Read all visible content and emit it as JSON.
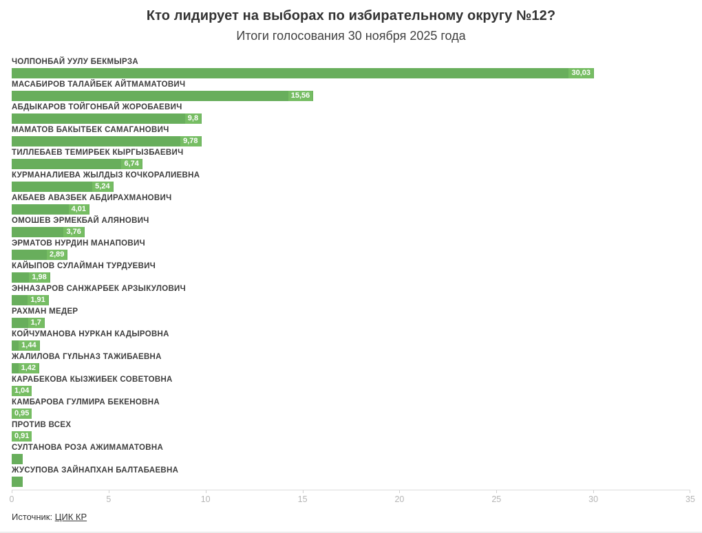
{
  "chart_data": {
    "type": "bar",
    "orientation": "horizontal",
    "title": "Кто лидирует на выборах по избирательному округу №12?",
    "subtitle": "Итоги голосования 30 ноября 2025 года",
    "categories": [
      "ЧОЛПОНБАЙ УУЛУ БЕКМЫРЗА",
      "МАСАБИРОВ ТАЛАЙБЕК АЙТМАМАТОВИЧ",
      "АБДЫКАРОВ ТОЙГОНБАЙ ЖОРОБАЕВИЧ",
      "МАМАТОВ БАКЫТБЕК САМАГАНОВИЧ",
      "ТИЛЛЕБАЕВ ТЕМИРБЕК КЫРГЫЗБАЕВИЧ",
      "КУРМАНАЛИЕВА ЖЫЛДЫЗ КОЧКОРАЛИЕВНА",
      "АКБАЕВ АВАЗБЕК АБДИРАХМАНОВИЧ",
      "ОМОШЕВ ЭРМЕКБАЙ АЛЯНОВИЧ",
      "ЭРМАТОВ НУРДИН МАНАПОВИЧ",
      "КАЙЫПОВ СУЛАЙМАН ТУРДУЕВИЧ",
      "ЭННАЗАРОВ САНЖАРБЕК АРЗЫКУЛОВИЧ",
      "РАХМАН МЕДЕР",
      "КОЙЧУМАНОВА НУРКАН КАДЫРОВНА",
      "ЖАЛИЛОВА ГҮЛЬНАЗ ТАЖИБАЕВНА",
      "КАРАБЕКОВА КЫЗЖИБЕК СОВЕТОВНА",
      "КАМБАРОВА ГУЛМИРА БЕКЕНОВНА",
      "ПРОТИВ ВСЕХ",
      "СУЛТАНОВА РОЗА АЖИМАМАТОВНА",
      "ЖУСУПОВА ЗАЙНАПХАН БАЛТАБАЕВНА"
    ],
    "values": [
      30.03,
      15.56,
      9.8,
      9.78,
      6.74,
      5.24,
      4.01,
      3.76,
      2.89,
      1.98,
      1.91,
      1.7,
      1.44,
      1.42,
      1.04,
      0.95,
      0.91,
      0.5,
      0.5
    ],
    "value_labels": [
      "30,03",
      "15,56",
      "9,8",
      "9,78",
      "6,74",
      "5,24",
      "4,01",
      "3,76",
      "2,89",
      "1,98",
      "1,91",
      "1,7",
      "1,44",
      "1,42",
      "1,04",
      "0,95",
      "0,91",
      "",
      ""
    ],
    "xlabel": "",
    "ylabel": "",
    "xlim": [
      0,
      35
    ],
    "x_ticks": [
      0,
      5,
      10,
      15,
      20,
      25,
      30,
      35
    ],
    "grid": false,
    "legend": "none",
    "bar_color": "#68ae5c",
    "label_chip_color": "#76bd63",
    "value_text_color": "#ffffff"
  },
  "footer": {
    "source_prefix": "Источник:",
    "source_link": "ЦИК КР"
  }
}
